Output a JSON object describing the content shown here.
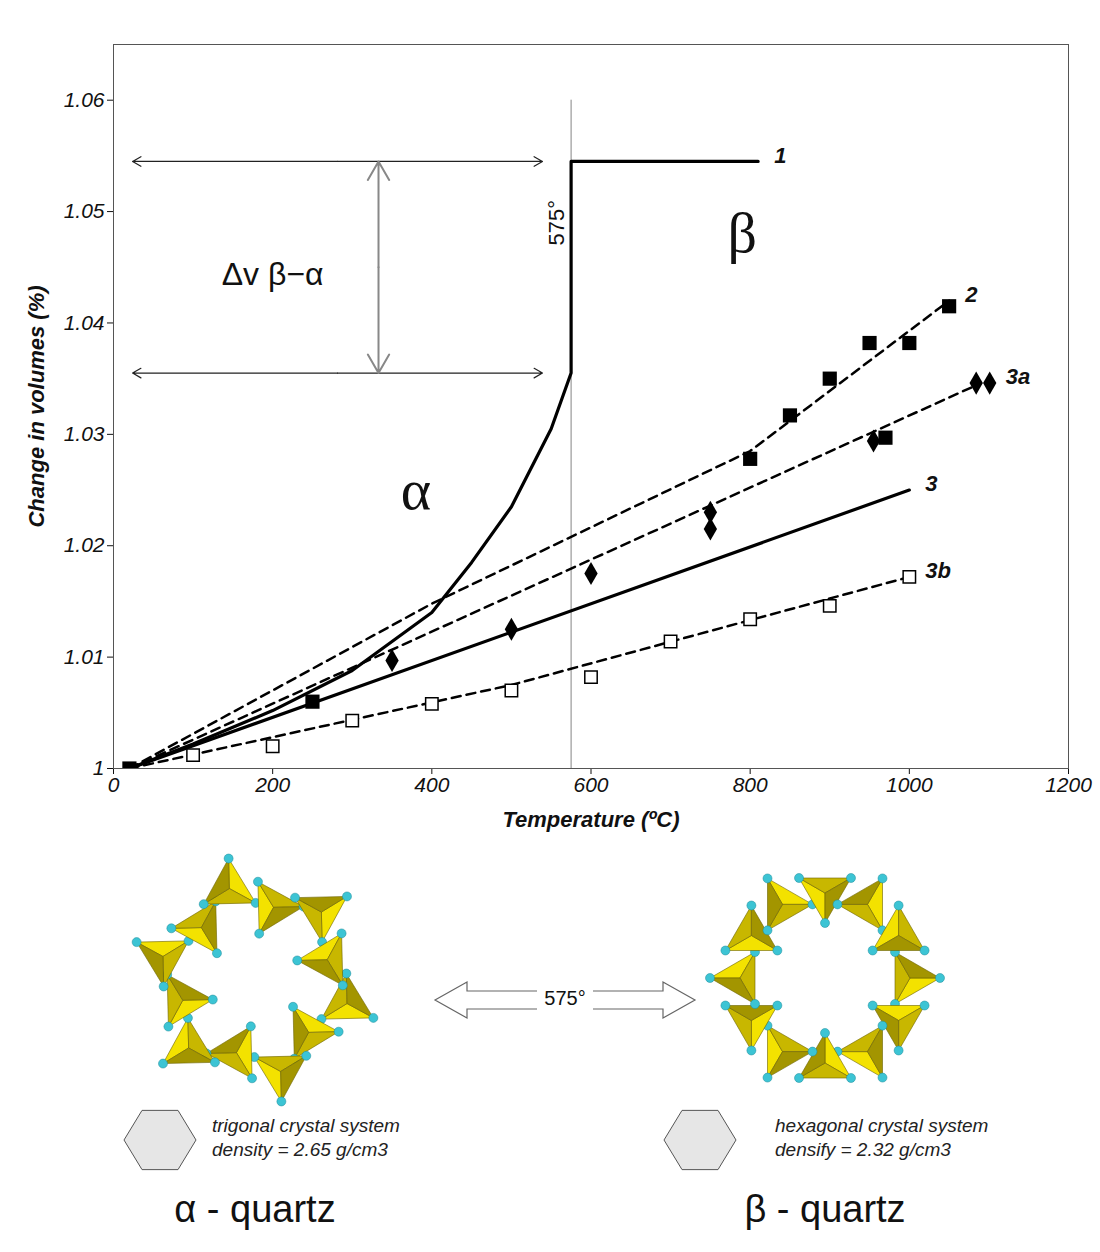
{
  "chart_data": {
    "type": "line",
    "x_label": "Temperature (ºC)",
    "y_label": "Change in volumes (%)",
    "xlim": [
      0,
      1200
    ],
    "ylim": [
      1,
      1.065
    ],
    "xticks": [
      0,
      200,
      400,
      600,
      800,
      1000,
      1200
    ],
    "yticks": [
      1,
      1.01,
      1.02,
      1.03,
      1.04,
      1.05,
      1.06
    ],
    "grid": false,
    "series": [
      {
        "name": "1",
        "color": "#000000",
        "line_style": "solid",
        "marker": "none",
        "x": [
          20,
          100,
          200,
          300,
          400,
          450,
          500,
          550,
          575,
          575,
          810
        ],
        "values": [
          1,
          1.0022,
          1.0052,
          1.0088,
          1.014,
          1.0185,
          1.0235,
          1.0305,
          1.0355,
          1.0545,
          1.0545
        ]
      },
      {
        "name": "2",
        "color": "#000000",
        "line_style": "dashed",
        "marker": "square",
        "x": [
          20,
          250,
          800,
          850,
          900,
          950,
          970,
          1000,
          1050
        ],
        "values": [
          1,
          1.006,
          1.0278,
          1.0317,
          1.035,
          1.0382,
          1.0297,
          1.0382,
          1.0415
        ],
        "fit_x": [
          20,
          400,
          800,
          1050
        ],
        "fit_values": [
          1,
          1.0148,
          1.0285,
          1.042
        ]
      },
      {
        "name": "3a",
        "color": "#000000",
        "line_style": "dashed",
        "marker": "diamond",
        "x": [
          350,
          500,
          600,
          750,
          750,
          955,
          1084,
          1101
        ],
        "values": [
          1.0097,
          1.0125,
          1.0175,
          1.023,
          1.0215,
          1.0294,
          1.0346,
          1.0346
        ],
        "fit_x": [
          20,
          1090
        ],
        "fit_values": [
          1,
          1.0346
        ]
      },
      {
        "name": "3",
        "color": "#000000",
        "line_style": "solid",
        "marker": "none",
        "x": [
          20,
          1000
        ],
        "values": [
          1,
          1.025
        ]
      },
      {
        "name": "3b",
        "color": "#000000",
        "line_style": "dashed",
        "marker": "open-square",
        "x": [
          100,
          200,
          300,
          400,
          500,
          600,
          700,
          800,
          900,
          1000
        ],
        "values": [
          1.0012,
          1.002,
          1.0043,
          1.0058,
          1.007,
          1.0082,
          1.0114,
          1.0134,
          1.0146,
          1.0172
        ],
        "fit_x": [
          20,
          500,
          1000
        ],
        "fit_values": [
          1,
          1.0075,
          1.0172
        ]
      }
    ],
    "transition": {
      "x": 575,
      "label": "575°",
      "label_y": 1.049
    },
    "annotations": [
      {
        "text": "α",
        "x": 380,
        "y": 1.025
      },
      {
        "text": "β",
        "x": 790,
        "y": 1.048
      },
      {
        "text": "Δv β−α",
        "x": 200,
        "y": 1.0443
      }
    ]
  },
  "structures": {
    "transition": "575°",
    "phases": [
      {
        "name": "α - quartz",
        "system": "trigonal crystal system",
        "density": "density = 2.65 g/cm3"
      },
      {
        "name": "β - quartz",
        "system": "hexagonal crystal system",
        "density": "densify = 2.32 g/cm3"
      }
    ]
  }
}
